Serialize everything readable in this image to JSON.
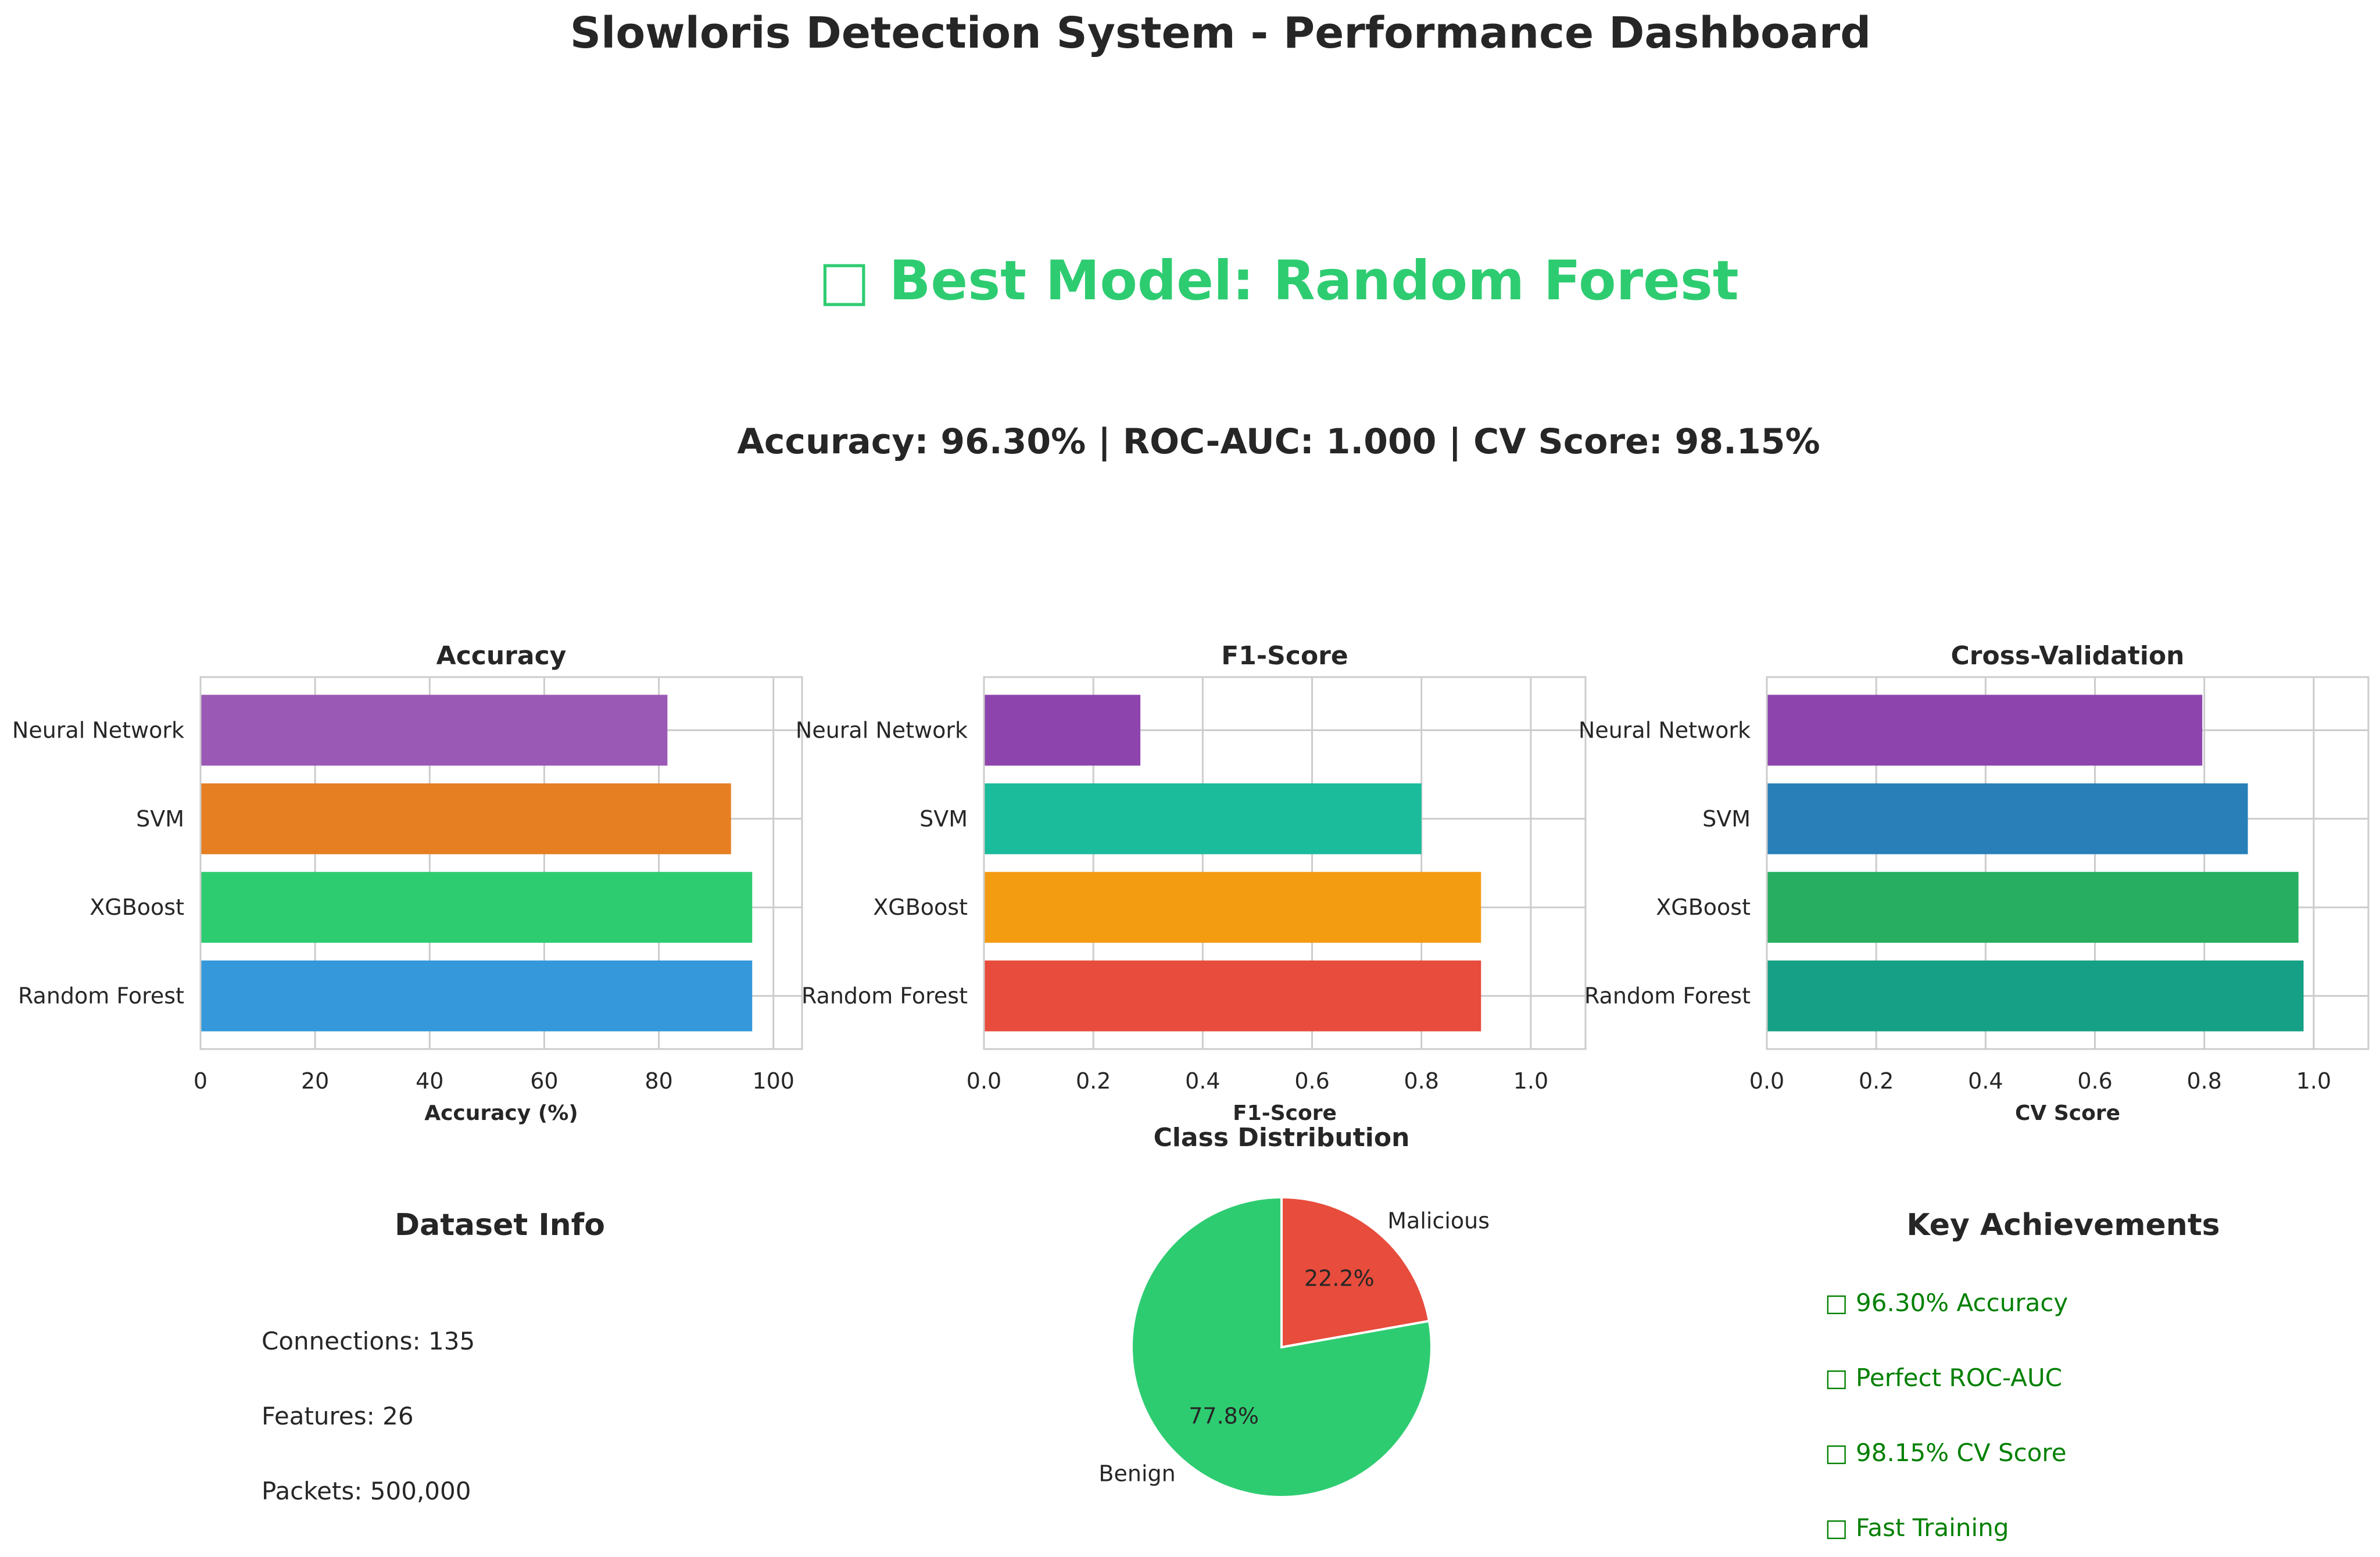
{
  "dashboard": {
    "title": "Slowloris Detection System - Performance Dashboard",
    "best_model": "□ Best Model: Random Forest",
    "summary": "Accuracy: 96.30% | ROC-AUC: 1.000 | CV Score: 98.15%"
  },
  "colors": {
    "text": "#262626",
    "green_headline": "#2ecc71",
    "achievement_green": "#008000",
    "axis_spine": "#cccccc",
    "grid": "#cccccc"
  },
  "chart_data": [
    {
      "type": "bar",
      "orientation": "horizontal",
      "title": "Accuracy",
      "xlabel": "Accuracy (%)",
      "ylabel": "",
      "categories": [
        "Random Forest",
        "XGBoost",
        "SVM",
        "Neural Network"
      ],
      "values": [
        96.3,
        96.3,
        92.6,
        81.5
      ],
      "colors": [
        "#3498db",
        "#2ecc71",
        "#e67e22",
        "#9b59b6"
      ],
      "xlim": [
        0,
        105
      ],
      "ticks": [
        0,
        20,
        40,
        60,
        80,
        100
      ],
      "tick_labels": [
        "0",
        "20",
        "40",
        "60",
        "80",
        "100"
      ],
      "grid": true
    },
    {
      "type": "bar",
      "orientation": "horizontal",
      "title": "F1-Score",
      "xlabel": "F1-Score",
      "ylabel": "",
      "categories": [
        "Random Forest",
        "XGBoost",
        "SVM",
        "Neural Network"
      ],
      "values": [
        0.909,
        0.909,
        0.8,
        0.286
      ],
      "colors": [
        "#e74c3c",
        "#f39c12",
        "#1abc9c",
        "#8e44ad"
      ],
      "xlim": [
        0,
        1.1
      ],
      "ticks": [
        0,
        0.2,
        0.4,
        0.6,
        0.8,
        1.0
      ],
      "tick_labels": [
        "0.0",
        "0.2",
        "0.4",
        "0.6",
        "0.8",
        "1.0"
      ],
      "grid": true
    },
    {
      "type": "bar",
      "orientation": "horizontal",
      "title": "Cross-Validation",
      "xlabel": "CV Score",
      "ylabel": "",
      "categories": [
        "Random Forest",
        "XGBoost",
        "SVM",
        "Neural Network"
      ],
      "values": [
        0.9815,
        0.9722,
        0.8796,
        0.7963
      ],
      "colors": [
        "#16a085",
        "#27ae60",
        "#2980b9",
        "#8e44ad"
      ],
      "xlim": [
        0,
        1.1
      ],
      "ticks": [
        0,
        0.2,
        0.4,
        0.6,
        0.8,
        1.0
      ],
      "tick_labels": [
        "0.0",
        "0.2",
        "0.4",
        "0.6",
        "0.8",
        "1.0"
      ],
      "grid": true
    },
    {
      "type": "pie",
      "title": "Class Distribution",
      "labels": [
        "Benign",
        "Malicious"
      ],
      "values": [
        77.8,
        22.2
      ],
      "pct_labels": [
        "77.8%",
        "22.2%"
      ],
      "colors": [
        "#2ecc71",
        "#e74c3c"
      ],
      "start_angle": 90
    }
  ],
  "dataset_info": {
    "title": "Dataset Info",
    "lines": [
      "Connections: 135",
      "Features: 26",
      "Packets: 500,000"
    ]
  },
  "achievements": {
    "title": "Key Achievements",
    "items": [
      "□ 96.30% Accuracy",
      "□ Perfect ROC-AUC",
      "□ 98.15% CV Score",
      "□ Fast Training"
    ]
  }
}
